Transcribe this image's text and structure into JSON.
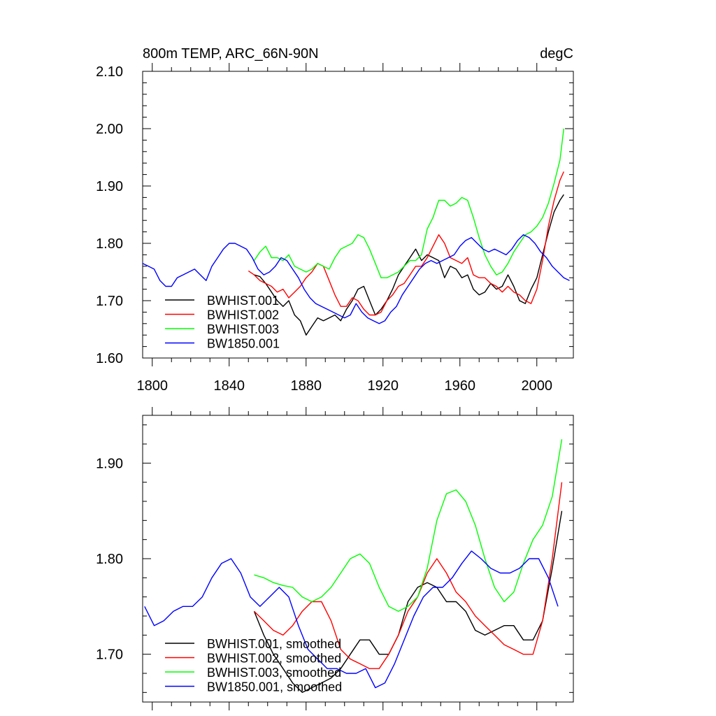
{
  "chart_data": [
    {
      "type": "line",
      "title": "800m TEMP, ARC_66N-90N",
      "units": "degC",
      "xlim": [
        1795,
        2019
      ],
      "ylim": [
        1.6,
        2.1
      ],
      "xticks": [
        1800,
        1840,
        1880,
        1920,
        1960,
        2000
      ],
      "xtick_labels": [
        "1800",
        "1840",
        "1880",
        "1920",
        "1960",
        "2000"
      ],
      "yticks": [
        1.6,
        1.7,
        1.8,
        1.9,
        2.0,
        2.1
      ],
      "ytick_labels": [
        "1.60",
        "1.70",
        "1.80",
        "1.90",
        "2.00",
        "2.10"
      ],
      "legend_position": "bottom-left",
      "series": [
        {
          "name": "BWHIST.001",
          "color": "#000000",
          "x": [
            1853,
            1856,
            1859,
            1862,
            1865,
            1868,
            1871,
            1874,
            1877,
            1880,
            1883,
            1886,
            1889,
            1892,
            1895,
            1898,
            1901,
            1904,
            1907,
            1910,
            1913,
            1916,
            1919,
            1922,
            1925,
            1928,
            1931,
            1934,
            1937,
            1940,
            1943,
            1946,
            1949,
            1952,
            1955,
            1958,
            1961,
            1964,
            1967,
            1970,
            1973,
            1976,
            1979,
            1982,
            1985,
            1988,
            1991,
            1994,
            1997,
            2000,
            2003,
            2006,
            2009,
            2012,
            2014
          ],
          "values": [
            1.745,
            1.742,
            1.73,
            1.715,
            1.7,
            1.69,
            1.7,
            1.675,
            1.665,
            1.64,
            1.655,
            1.67,
            1.665,
            1.67,
            1.675,
            1.665,
            1.685,
            1.7,
            1.72,
            1.725,
            1.7,
            1.675,
            1.685,
            1.7,
            1.72,
            1.745,
            1.76,
            1.775,
            1.79,
            1.77,
            1.78,
            1.775,
            1.77,
            1.74,
            1.76,
            1.755,
            1.74,
            1.745,
            1.72,
            1.71,
            1.715,
            1.73,
            1.72,
            1.725,
            1.745,
            1.725,
            1.7,
            1.695,
            1.72,
            1.74,
            1.78,
            1.82,
            1.855,
            1.875,
            1.885
          ]
        },
        {
          "name": "BWHIST.002",
          "color": "#ff0000",
          "x": [
            1850,
            1853,
            1856,
            1859,
            1862,
            1865,
            1868,
            1871,
            1874,
            1877,
            1880,
            1883,
            1886,
            1889,
            1892,
            1895,
            1898,
            1901,
            1904,
            1907,
            1910,
            1913,
            1916,
            1919,
            1922,
            1925,
            1928,
            1931,
            1934,
            1937,
            1940,
            1943,
            1946,
            1949,
            1952,
            1955,
            1958,
            1961,
            1964,
            1967,
            1970,
            1973,
            1976,
            1979,
            1982,
            1985,
            1988,
            1991,
            1994,
            1997,
            2000,
            2003,
            2006,
            2009,
            2012,
            2014
          ],
          "values": [
            1.752,
            1.745,
            1.735,
            1.73,
            1.725,
            1.715,
            1.72,
            1.705,
            1.715,
            1.725,
            1.74,
            1.75,
            1.765,
            1.76,
            1.735,
            1.71,
            1.69,
            1.69,
            1.705,
            1.7,
            1.685,
            1.675,
            1.675,
            1.68,
            1.7,
            1.71,
            1.725,
            1.73,
            1.745,
            1.76,
            1.76,
            1.775,
            1.795,
            1.815,
            1.8,
            1.775,
            1.77,
            1.765,
            1.775,
            1.745,
            1.74,
            1.74,
            1.73,
            1.725,
            1.715,
            1.725,
            1.715,
            1.71,
            1.7,
            1.695,
            1.72,
            1.77,
            1.83,
            1.875,
            1.91,
            1.925
          ]
        },
        {
          "name": "BWHIST.003",
          "color": "#00ff00",
          "x": [
            1853,
            1856,
            1859,
            1862,
            1865,
            1868,
            1871,
            1874,
            1877,
            1880,
            1883,
            1886,
            1889,
            1892,
            1895,
            1898,
            1901,
            1904,
            1907,
            1910,
            1913,
            1916,
            1919,
            1922,
            1925,
            1928,
            1931,
            1934,
            1937,
            1940,
            1943,
            1946,
            1949,
            1952,
            1955,
            1958,
            1961,
            1964,
            1967,
            1970,
            1973,
            1976,
            1979,
            1982,
            1985,
            1988,
            1991,
            1994,
            1997,
            2000,
            2003,
            2006,
            2009,
            2012,
            2014
          ],
          "values": [
            1.77,
            1.785,
            1.795,
            1.775,
            1.775,
            1.77,
            1.78,
            1.76,
            1.755,
            1.75,
            1.755,
            1.765,
            1.76,
            1.755,
            1.775,
            1.79,
            1.795,
            1.8,
            1.815,
            1.81,
            1.79,
            1.765,
            1.74,
            1.74,
            1.745,
            1.75,
            1.76,
            1.77,
            1.77,
            1.78,
            1.825,
            1.845,
            1.875,
            1.875,
            1.865,
            1.87,
            1.88,
            1.875,
            1.845,
            1.81,
            1.78,
            1.76,
            1.745,
            1.75,
            1.765,
            1.785,
            1.8,
            1.815,
            1.82,
            1.83,
            1.845,
            1.87,
            1.905,
            1.945,
            2.0
          ]
        },
        {
          "name": "BW1850.001",
          "color": "#0000ff",
          "x": [
            1795,
            1798,
            1801,
            1804,
            1807,
            1810,
            1813,
            1816,
            1819,
            1822,
            1825,
            1828,
            1831,
            1834,
            1837,
            1840,
            1843,
            1846,
            1849,
            1852,
            1855,
            1858,
            1861,
            1864,
            1867,
            1870,
            1873,
            1876,
            1879,
            1882,
            1885,
            1888,
            1891,
            1894,
            1897,
            1900,
            1903,
            1906,
            1909,
            1912,
            1915,
            1918,
            1921,
            1924,
            1927,
            1930,
            1933,
            1936,
            1939,
            1942,
            1945,
            1948,
            1951,
            1954,
            1957,
            1960,
            1963,
            1966,
            1969,
            1972,
            1975,
            1978,
            1981,
            1984,
            1987,
            1990,
            1993,
            1996,
            1999,
            2002,
            2005,
            2008,
            2011,
            2014,
            2017
          ],
          "values": [
            1.765,
            1.76,
            1.755,
            1.735,
            1.725,
            1.725,
            1.74,
            1.745,
            1.75,
            1.755,
            1.745,
            1.735,
            1.76,
            1.775,
            1.79,
            1.8,
            1.8,
            1.795,
            1.79,
            1.775,
            1.755,
            1.745,
            1.75,
            1.76,
            1.775,
            1.77,
            1.755,
            1.74,
            1.72,
            1.705,
            1.695,
            1.69,
            1.685,
            1.68,
            1.675,
            1.67,
            1.675,
            1.695,
            1.68,
            1.67,
            1.665,
            1.66,
            1.665,
            1.68,
            1.69,
            1.71,
            1.725,
            1.74,
            1.755,
            1.765,
            1.77,
            1.765,
            1.77,
            1.775,
            1.78,
            1.795,
            1.805,
            1.81,
            1.8,
            1.79,
            1.785,
            1.79,
            1.785,
            1.78,
            1.79,
            1.805,
            1.815,
            1.81,
            1.8,
            1.785,
            1.775,
            1.76,
            1.75,
            1.74,
            1.735
          ]
        }
      ]
    },
    {
      "type": "line",
      "title": "",
      "xlim": [
        1795,
        2019
      ],
      "ylim": [
        1.65,
        1.95
      ],
      "xticks": [
        1800,
        1840,
        1880,
        1920,
        1960,
        2000
      ],
      "yticks": [
        1.7,
        1.8,
        1.9
      ],
      "ytick_labels": [
        "1.70",
        "1.80",
        "1.90"
      ],
      "legend_position": "bottom-left",
      "series": [
        {
          "name": "BWHIST.001, smoothed",
          "color": "#000000",
          "x": [
            1853,
            1858,
            1863,
            1868,
            1873,
            1878,
            1883,
            1888,
            1893,
            1898,
            1903,
            1908,
            1913,
            1918,
            1923,
            1928,
            1933,
            1938,
            1943,
            1948,
            1953,
            1958,
            1963,
            1968,
            1973,
            1978,
            1983,
            1988,
            1993,
            1998,
            2003,
            2008,
            2013
          ],
          "values": [
            1.745,
            1.72,
            1.7,
            1.685,
            1.67,
            1.66,
            1.665,
            1.67,
            1.675,
            1.685,
            1.7,
            1.715,
            1.715,
            1.7,
            1.7,
            1.72,
            1.755,
            1.77,
            1.775,
            1.77,
            1.755,
            1.755,
            1.745,
            1.725,
            1.72,
            1.725,
            1.73,
            1.73,
            1.715,
            1.715,
            1.735,
            1.79,
            1.85
          ]
        },
        {
          "name": "BWHIST.002, smoothed",
          "color": "#ff0000",
          "x": [
            1853,
            1858,
            1863,
            1868,
            1873,
            1878,
            1883,
            1888,
            1893,
            1898,
            1903,
            1908,
            1913,
            1918,
            1923,
            1928,
            1933,
            1938,
            1943,
            1948,
            1953,
            1958,
            1963,
            1968,
            1973,
            1978,
            1983,
            1988,
            1993,
            1998,
            2003,
            2008,
            2013
          ],
          "values": [
            1.745,
            1.735,
            1.725,
            1.72,
            1.73,
            1.745,
            1.755,
            1.755,
            1.735,
            1.705,
            1.695,
            1.69,
            1.685,
            1.685,
            1.7,
            1.72,
            1.745,
            1.76,
            1.785,
            1.8,
            1.785,
            1.765,
            1.755,
            1.74,
            1.73,
            1.72,
            1.71,
            1.705,
            1.7,
            1.7,
            1.735,
            1.8,
            1.88
          ]
        },
        {
          "name": "BWHIST.003, smoothed",
          "color": "#00ff00",
          "x": [
            1853,
            1858,
            1863,
            1868,
            1873,
            1878,
            1883,
            1888,
            1893,
            1898,
            1903,
            1908,
            1913,
            1918,
            1923,
            1928,
            1933,
            1938,
            1943,
            1948,
            1953,
            1958,
            1963,
            1968,
            1973,
            1978,
            1983,
            1988,
            1993,
            1998,
            2003,
            2008,
            2013
          ],
          "values": [
            1.783,
            1.78,
            1.775,
            1.772,
            1.77,
            1.76,
            1.755,
            1.76,
            1.77,
            1.785,
            1.8,
            1.805,
            1.795,
            1.77,
            1.75,
            1.745,
            1.75,
            1.76,
            1.79,
            1.84,
            1.868,
            1.872,
            1.86,
            1.835,
            1.8,
            1.77,
            1.755,
            1.765,
            1.795,
            1.82,
            1.835,
            1.865,
            1.925
          ]
        },
        {
          "name": "BW1850.001, smoothed",
          "color": "#0000ff",
          "x": [
            1796,
            1801,
            1806,
            1811,
            1816,
            1821,
            1826,
            1831,
            1836,
            1841,
            1846,
            1851,
            1856,
            1861,
            1866,
            1871,
            1876,
            1881,
            1886,
            1891,
            1896,
            1901,
            1906,
            1911,
            1916,
            1921,
            1926,
            1931,
            1936,
            1941,
            1946,
            1951,
            1956,
            1961,
            1966,
            1971,
            1976,
            1981,
            1986,
            1991,
            1996,
            2001,
            2006,
            2011
          ],
          "values": [
            1.75,
            1.73,
            1.735,
            1.745,
            1.75,
            1.75,
            1.76,
            1.78,
            1.795,
            1.8,
            1.785,
            1.76,
            1.75,
            1.76,
            1.77,
            1.76,
            1.73,
            1.705,
            1.695,
            1.685,
            1.685,
            1.68,
            1.68,
            1.685,
            1.665,
            1.67,
            1.69,
            1.715,
            1.74,
            1.76,
            1.77,
            1.77,
            1.78,
            1.795,
            1.808,
            1.8,
            1.79,
            1.785,
            1.785,
            1.79,
            1.8,
            1.8,
            1.78,
            1.75
          ]
        }
      ]
    }
  ]
}
